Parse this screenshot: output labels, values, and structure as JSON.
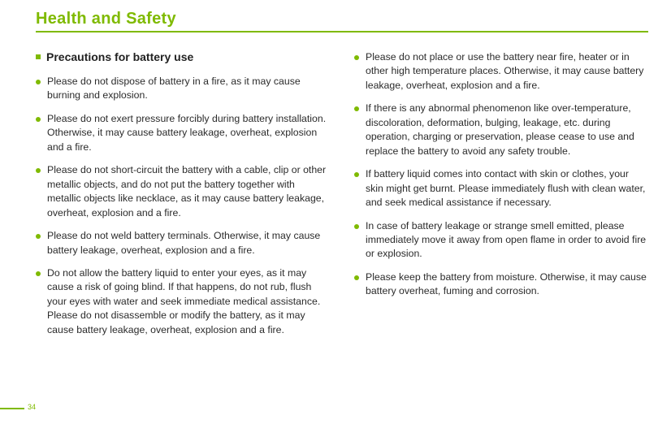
{
  "header": {
    "title": "Health and Safety"
  },
  "section": {
    "title": "Precautions for battery use"
  },
  "left_items": [
    "Please do not dispose of battery in a fire, as it may cause burning and explosion.",
    "Please do not exert pressure forcibly during battery installation. Otherwise, it may cause battery leakage, overheat, explosion and a fire.",
    "Please do not short-circuit the battery with a cable, clip or other metallic objects, and do not put the battery together with metallic objects like necklace, as it may cause battery leakage, overheat, explosion and a fire.",
    "Please do not weld battery terminals. Otherwise, it may cause battery leakage, overheat, explosion and a fire.",
    "Do not allow the battery liquid to enter your eyes, as it may cause a risk of going blind. If that happens, do not rub, flush your eyes with water and seek immediate medical assistance. Please do not disassemble or modify the battery, as it may cause battery leakage, overheat, explosion and a fire."
  ],
  "right_items": [
    "Please do not place or use the battery near fire, heater or in other high temperature places. Otherwise, it may cause battery leakage, overheat, explosion and a fire.",
    "If there is any abnormal phenomenon like over-temperature, discoloration, deformation, bulging, leakage, etc. during operation, charging or preservation, please cease to use and replace the battery to avoid any safety trouble.",
    "If battery liquid comes into contact with skin or clothes, your skin might get burnt. Please immediately flush with clean water, and seek medical assistance if necessary.",
    "In case of battery leakage or strange smell emitted, please immediately move it away from open flame in order to avoid fire or explosion.",
    "Please keep the battery from moisture. Otherwise, it may cause battery overheat, fuming and corrosion."
  ],
  "page_number": "34",
  "colors": {
    "accent": "#7fba00",
    "text": "#2b2b2b",
    "background": "#ffffff"
  }
}
